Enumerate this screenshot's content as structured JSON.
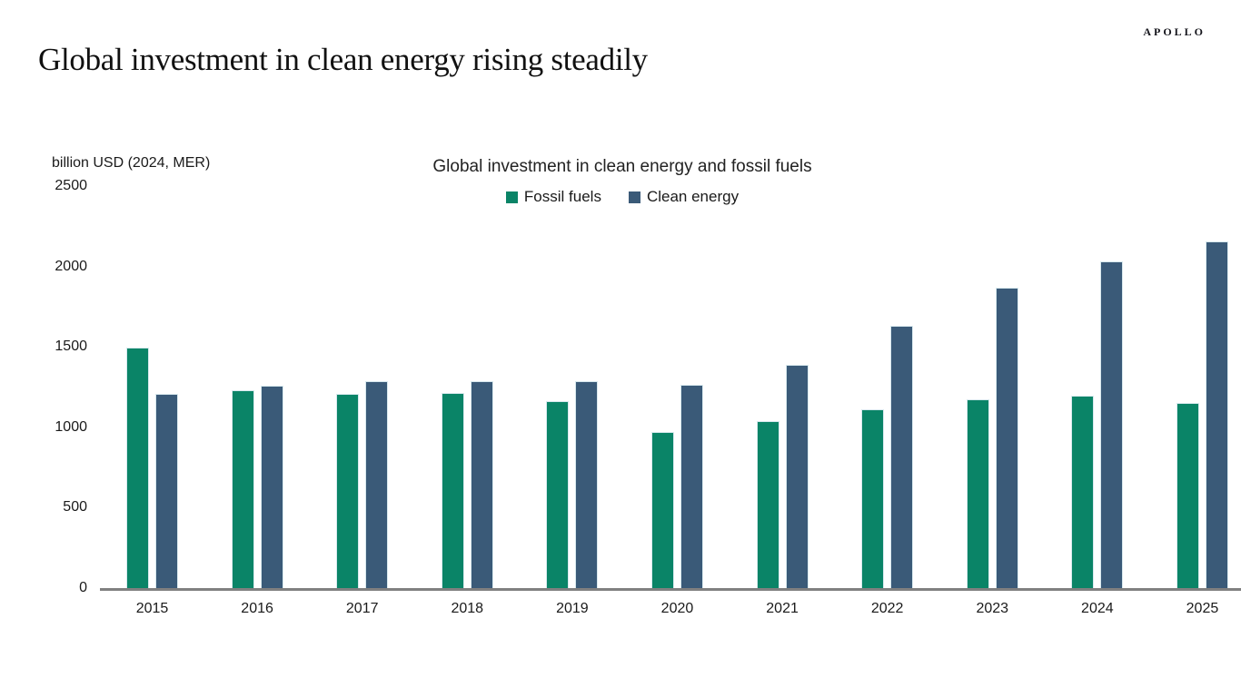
{
  "page": {
    "logo": "APOLLO",
    "title": "Global investment in clean energy rising steadily"
  },
  "chart": {
    "title": "Global investment in clean energy and fossil fuels",
    "y_axis_label": "billion USD (2024, MER)",
    "colors": {
      "fossil_fuels": "#0A8467",
      "clean_energy": "#3A5A78",
      "axis_line": "#808080"
    }
  },
  "chart_data": {
    "type": "bar",
    "title": "Global investment in clean energy and fossil fuels",
    "xlabel": "",
    "ylabel": "billion USD (2024, MER)",
    "ylim": [
      0,
      2500
    ],
    "yticks": [
      0,
      500,
      1000,
      1500,
      2000,
      2500
    ],
    "grid": false,
    "legend_position": "top-center",
    "categories": [
      "2015",
      "2016",
      "2017",
      "2018",
      "2019",
      "2020",
      "2021",
      "2022",
      "2023",
      "2024",
      "2025"
    ],
    "series": [
      {
        "name": "Fossil fuels",
        "color": "#0A8467",
        "values": [
          1495,
          1230,
          1210,
          1215,
          1165,
          970,
          1040,
          1110,
          1175,
          1195,
          1150
        ]
      },
      {
        "name": "Clean energy",
        "color": "#3A5A78",
        "values": [
          1210,
          1260,
          1285,
          1285,
          1285,
          1265,
          1390,
          1630,
          1870,
          2030,
          2155
        ]
      }
    ]
  }
}
